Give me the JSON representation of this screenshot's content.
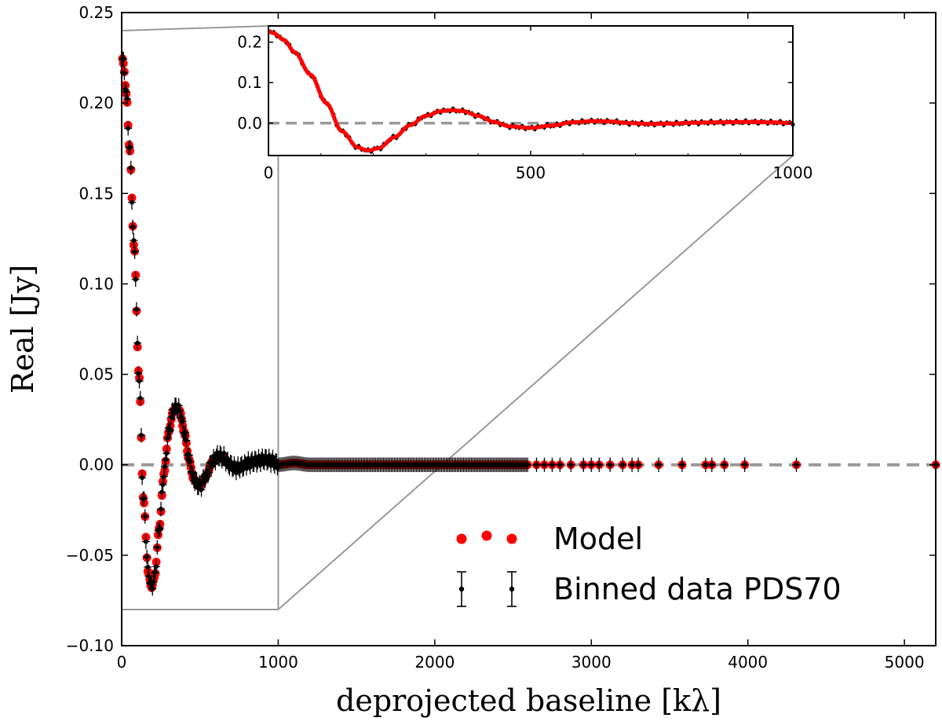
{
  "chart_data": {
    "main": {
      "type": "scatter",
      "xlabel": "deprojected baseline [kλ]",
      "ylabel": "Real [Jy]",
      "xlim": [
        0,
        5200
      ],
      "ylim": [
        -0.1,
        0.25
      ],
      "xticks": [
        0,
        1000,
        2000,
        3000,
        4000,
        5000
      ],
      "yticks": [
        -0.1,
        -0.05,
        0.0,
        0.05,
        0.1,
        0.15,
        0.2,
        0.25
      ],
      "xtick_labels": [
        "0",
        "1000",
        "2000",
        "3000",
        "4000",
        "5000"
      ],
      "ytick_labels": [
        "−0.10",
        "−0.05",
        "0.00",
        "0.05",
        "0.10",
        "0.15",
        "0.20",
        "0.25"
      ],
      "zero_line": {
        "y": 0.0,
        "style": "dashed",
        "color": "#999999"
      },
      "grid": false,
      "legend": {
        "placement": "lower-right",
        "entries": [
          {
            "label": "Model",
            "marker": "red-dot"
          },
          {
            "label": "Binned data PDS70",
            "marker": "black-errorbar"
          }
        ]
      },
      "zoom_region": {
        "x": [
          0,
          1000
        ],
        "y": [
          -0.08,
          0.24
        ]
      },
      "series": [
        {
          "name": "Model",
          "color": "#ff0000",
          "kind": "points"
        },
        {
          "name": "Binned data PDS70",
          "color": "#000000",
          "kind": "errorbar-points",
          "yerr": 0.004
        }
      ],
      "profile_knots": {
        "x": [
          0,
          10,
          30,
          50,
          80,
          110,
          140,
          170,
          190,
          210,
          240,
          270,
          300,
          330,
          350,
          370,
          400,
          430,
          460,
          500,
          540,
          580,
          620,
          650,
          690,
          730,
          770,
          810,
          860,
          920,
          960,
          1000,
          1100,
          1200,
          1300,
          1500,
          1800,
          2200,
          2600,
          3000,
          3500,
          4000,
          4300,
          5200
        ],
        "y": [
          0.227,
          0.222,
          0.205,
          0.175,
          0.12,
          0.05,
          -0.02,
          -0.06,
          -0.068,
          -0.062,
          -0.035,
          -0.005,
          0.018,
          0.03,
          0.032,
          0.03,
          0.018,
          0.003,
          -0.008,
          -0.012,
          -0.006,
          0.002,
          0.005,
          0.004,
          0.0,
          -0.002,
          -0.001,
          0.001,
          0.002,
          0.003,
          0.002,
          0.0,
          0.001,
          0.0,
          0.0,
          0.0,
          0.0,
          0.0,
          0.0,
          0.0,
          0.0,
          0.0,
          0.0,
          0.0
        ]
      },
      "sparse_points_x": [
        2650,
        2700,
        2750,
        2800,
        2870,
        2950,
        3000,
        3050,
        3120,
        3200,
        3260,
        3300,
        3430,
        3580,
        3730,
        3770,
        3850,
        3980,
        4310,
        5200
      ]
    },
    "inset": {
      "type": "scatter",
      "xlim": [
        0,
        1000
      ],
      "ylim": [
        -0.08,
        0.24
      ],
      "xticks": [
        0,
        500,
        1000
      ],
      "yticks": [
        0.0,
        0.1,
        0.2
      ],
      "xtick_labels": [
        "0",
        "500",
        "1000"
      ],
      "ytick_labels": [
        "0.0",
        "0.1",
        "0.2"
      ],
      "zero_line": {
        "y": 0.0,
        "style": "dashed",
        "color": "#999999"
      }
    }
  }
}
